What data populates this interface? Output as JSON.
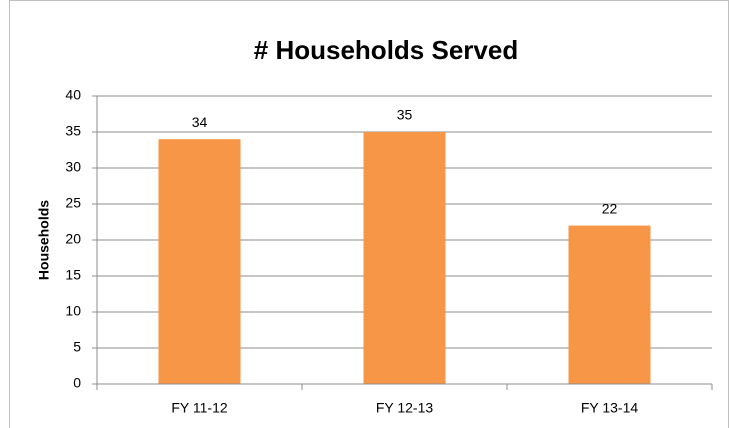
{
  "chart_data": {
    "type": "bar",
    "title": "# Households Served",
    "y_label": "Households",
    "categories": [
      "FY 11-12",
      "FY 12-13",
      "FY 13-14"
    ],
    "values": [
      34,
      35,
      22
    ],
    "color": "#f79646",
    "ylim": [
      0,
      40
    ],
    "yticks": [
      0,
      5,
      10,
      15,
      20,
      25,
      30,
      35,
      40
    ],
    "grid": true
  }
}
